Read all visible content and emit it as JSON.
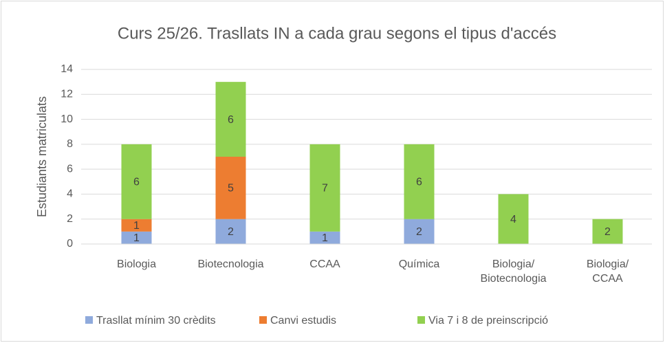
{
  "chart_data": {
    "type": "stacked_bar",
    "title": "Curs 25/26. Trasllats IN a cada grau segons el tipus d'accés",
    "y_label": "Estudiants matriculats",
    "categories": [
      "Biologia",
      "Biotecnologia",
      "CCAA",
      "Química",
      "Biologia/\nBiotecnologia",
      "Biologia/\nCCAA"
    ],
    "series": [
      {
        "name": "Trasllat mínim 30 crèdits",
        "color": "#8faadc",
        "values": [
          1,
          2,
          1,
          2,
          0,
          0
        ]
      },
      {
        "name": "Canvi estudis",
        "color": "#ed7d31",
        "values": [
          1,
          5,
          0,
          0,
          0,
          0
        ]
      },
      {
        "name": "Via 7 i 8 de preinscripció",
        "color": "#92d050",
        "values": [
          6,
          6,
          7,
          6,
          4,
          2
        ]
      }
    ],
    "ylim": [
      0,
      14
    ],
    "yticks": [
      0,
      2,
      4,
      6,
      8,
      10,
      12,
      14
    ],
    "grid": true,
    "legend": "bottom"
  }
}
